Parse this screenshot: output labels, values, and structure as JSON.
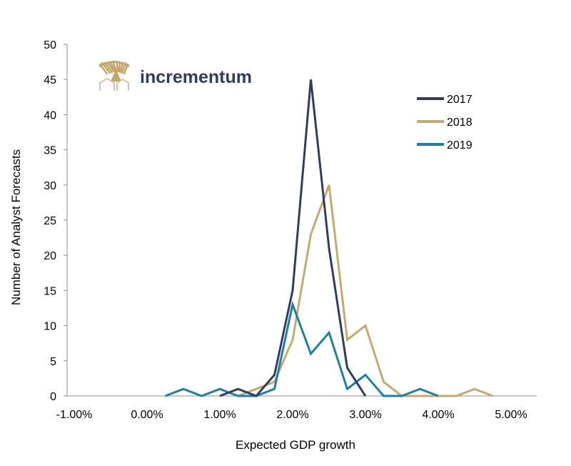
{
  "logo": {
    "text": "incrementum",
    "text_color": "#2f3e5c",
    "mark_color": "#c2a66b"
  },
  "colors": {
    "2017": "#2f3e5c",
    "2018": "#c2ab6f",
    "2019": "#1f7fa3"
  },
  "chart_data": {
    "type": "line",
    "title": "",
    "xlabel": "Expected GDP growth",
    "ylabel": "Number of Analyst Forecasts",
    "xlim": [
      -1.0,
      5.0
    ],
    "ylim": [
      0,
      50
    ],
    "xticks": [
      -1,
      0,
      1,
      2,
      3,
      4,
      5
    ],
    "xtick_labels": [
      "-1.00%",
      "0.00%",
      "1.00%",
      "2.00%",
      "3.00%",
      "4.00%",
      "5.00%"
    ],
    "yticks": [
      0,
      5,
      10,
      15,
      20,
      25,
      30,
      35,
      40,
      45,
      50
    ],
    "ytick_labels": [
      "0",
      "5",
      "10",
      "15",
      "20",
      "25",
      "30",
      "35",
      "40",
      "45",
      "50"
    ],
    "grid": false,
    "legend_position": "top-right",
    "series": [
      {
        "name": "2017",
        "x": [
          1.0,
          1.25,
          1.5,
          1.75,
          2.0,
          2.25,
          2.5,
          2.75,
          3.0
        ],
        "y": [
          0,
          1,
          0,
          3,
          15,
          45,
          21,
          4,
          0
        ]
      },
      {
        "name": "2018",
        "x": [
          1.25,
          1.5,
          1.75,
          2.0,
          2.25,
          2.5,
          2.75,
          3.0,
          3.25,
          3.5,
          3.75,
          4.0,
          4.25,
          4.5,
          4.75
        ],
        "y": [
          0,
          1,
          2,
          8,
          23,
          30,
          8,
          10,
          2,
          0,
          0,
          0,
          0,
          1,
          0
        ]
      },
      {
        "name": "2019",
        "x": [
          0.25,
          0.5,
          0.75,
          1.0,
          1.25,
          1.5,
          1.75,
          2.0,
          2.25,
          2.5,
          2.75,
          3.0,
          3.25,
          3.5,
          3.75,
          4.0
        ],
        "y": [
          0,
          1,
          0,
          1,
          0,
          0,
          1,
          13,
          6,
          9,
          1,
          3,
          0,
          0,
          1,
          0
        ]
      }
    ]
  }
}
